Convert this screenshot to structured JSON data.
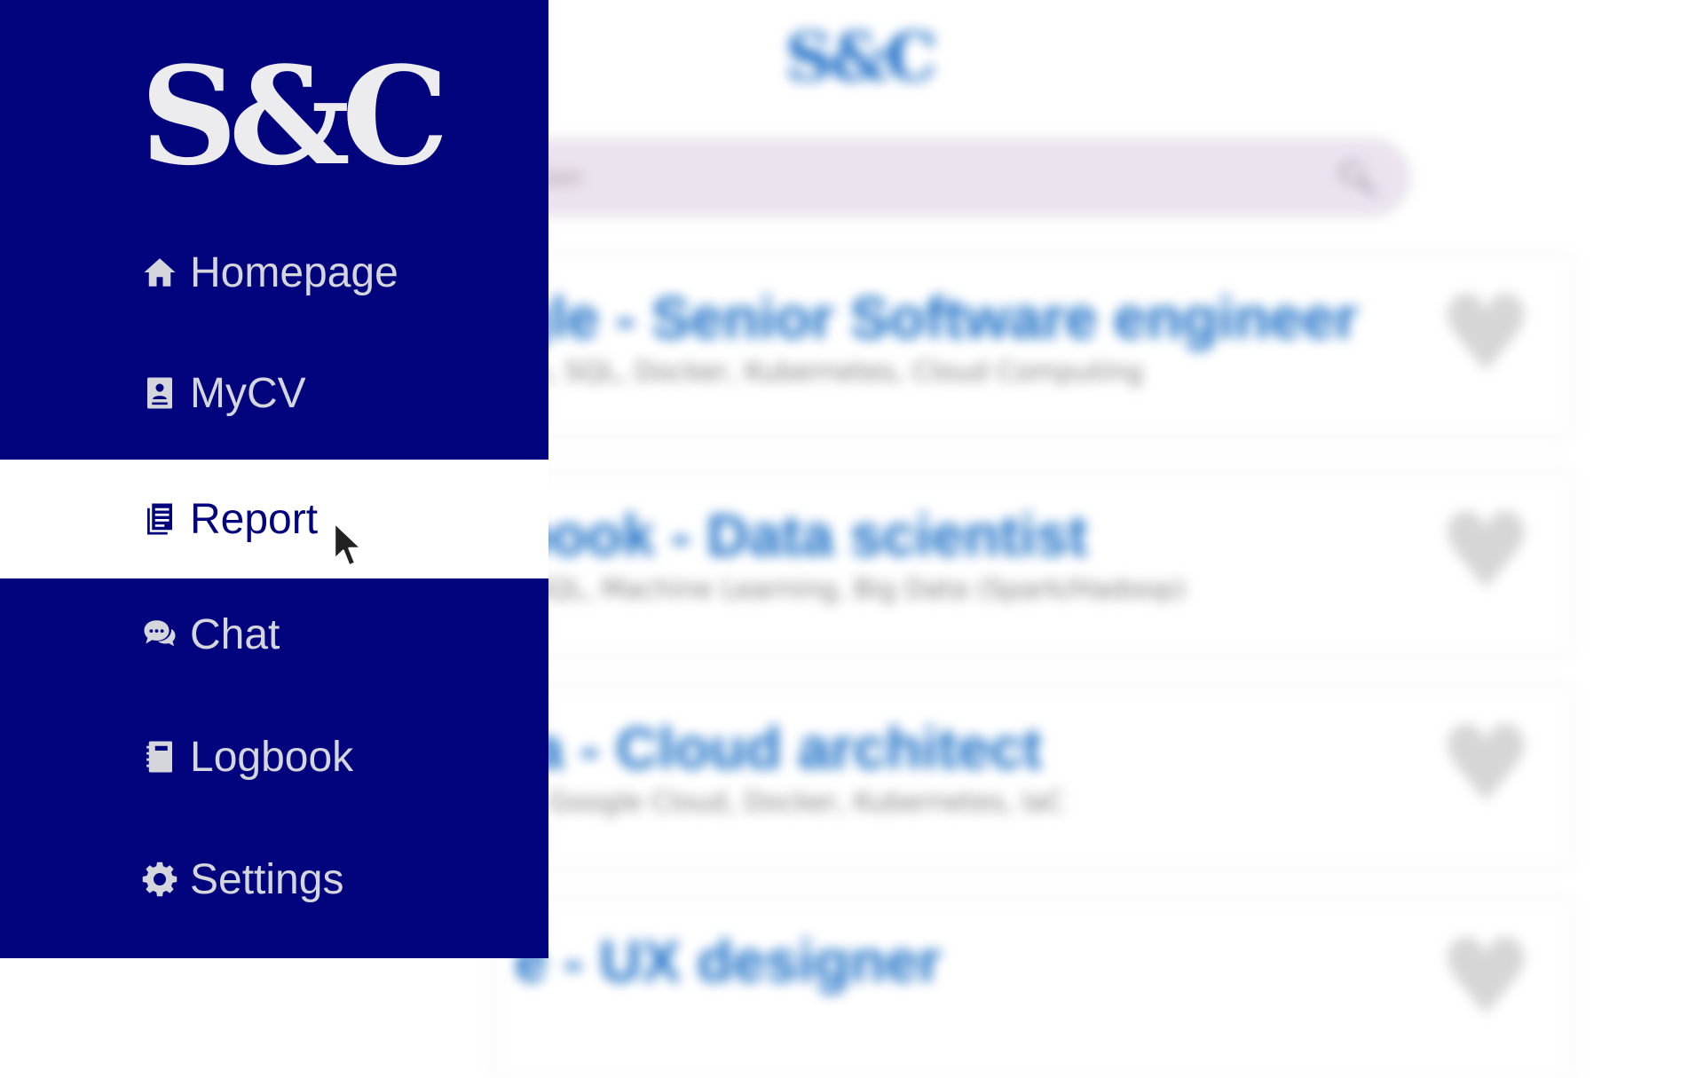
{
  "background": {
    "logo": "S&C",
    "search": {
      "placeholder": "ition",
      "icon": "search-icon"
    },
    "jobs": [
      {
        "title": "gle - Senior Software engineer",
        "skills": "on, SQL, Docker, Kubernetes, Cloud Computing",
        "favorite_icon": "heart-icon"
      },
      {
        "title": "book - Data scientist",
        "skills": ", SQL, Machine Learning, Big Data (Spark/Hadoop)",
        "favorite_icon": "heart-icon"
      },
      {
        "title": "ia - Cloud architect",
        "skills": "n, Google Cloud, Docker, Kubernetes, IaC",
        "favorite_icon": "heart-icon"
      },
      {
        "title": "e - UX designer",
        "skills": "",
        "favorite_icon": "heart-icon"
      }
    ]
  },
  "sidebar": {
    "logo": "S&C",
    "items": [
      {
        "label": "Homepage",
        "icon": "home-icon"
      },
      {
        "label": "MyCV",
        "icon": "cv-icon"
      },
      {
        "label": "Report",
        "icon": "report-icon",
        "active": true
      },
      {
        "label": "Chat",
        "icon": "chat-icon"
      },
      {
        "label": "Logbook",
        "icon": "logbook-icon"
      },
      {
        "label": "Settings",
        "icon": "gear-icon"
      }
    ]
  },
  "colors": {
    "sidebar_bg": "#02047e",
    "sidebar_text": "#d5d5dc",
    "active_bg": "#ffffff",
    "accent": "#1b6fc6"
  }
}
